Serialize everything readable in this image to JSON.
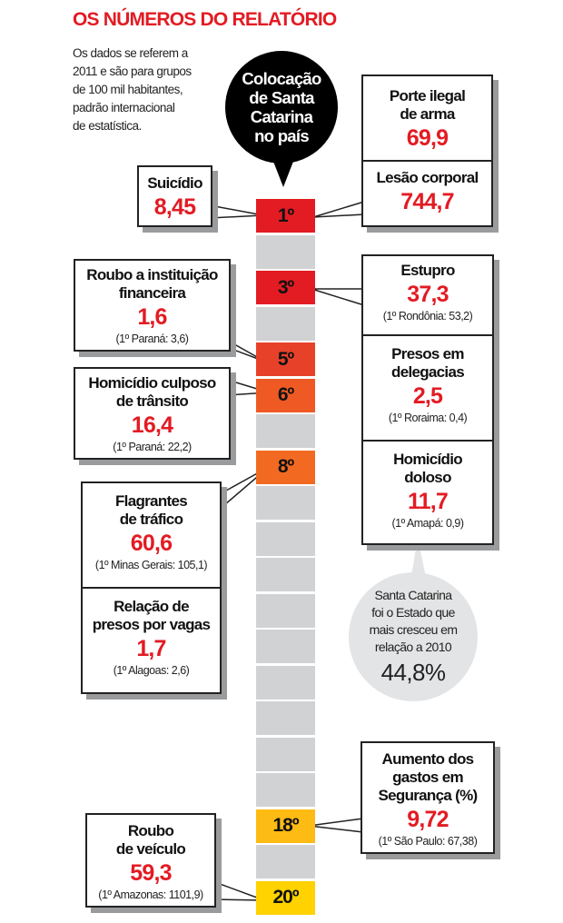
{
  "title": "OS NÚMEROS DO RELATÓRIO",
  "intro": [
    "Os dados se referem a",
    "2011 e são para grupos",
    "de 100 mil habitantes,",
    "padrão internacional",
    "de estatística."
  ],
  "bubble": [
    "Colocação",
    "de Santa",
    "Catarina",
    "no país"
  ],
  "ranks": [
    "1º",
    "3º",
    "5º",
    "6º",
    "8º",
    "18º",
    "20º"
  ],
  "colors": {
    "rank1": "#e31b23",
    "rank3": "#e31b23",
    "rank5": "#e8412a",
    "rank6": "#ef5a24",
    "rank8": "#f26a22",
    "rank18": "#fdbb13",
    "rank20": "#ffd200",
    "empty": "#d1d2d4",
    "value": "#e31b23"
  },
  "callouts": {
    "suicidio": {
      "title": [
        "Suicídio"
      ],
      "value": "8,45"
    },
    "porte": {
      "title": [
        "Porte ilegal",
        "de arma"
      ],
      "value": "69,9"
    },
    "lesao": {
      "title": [
        "Lesão corporal"
      ],
      "value": "744,7"
    },
    "roubo_inst": {
      "title": [
        "Roubo a instituição",
        "financeira"
      ],
      "value": "1,6",
      "note": "(1º Paraná: 3,6)"
    },
    "estupro": {
      "title": [
        "Estupro"
      ],
      "value": "37,3",
      "note": "(1º Rondônia: 53,2)"
    },
    "presos_deleg": {
      "title": [
        "Presos em",
        "delegacias"
      ],
      "value": "2,5",
      "note": "(1º Roraima: 0,4)"
    },
    "homic_culposo": {
      "title": [
        "Homicídio culposo",
        "de trânsito"
      ],
      "value": "16,4",
      "note": "(1º Paraná: 22,2)"
    },
    "homic_doloso": {
      "title": [
        "Homicídio",
        "doloso"
      ],
      "value": "11,7",
      "note": "(1º Amapá: 0,9)"
    },
    "flagrantes": {
      "title": [
        "Flagrantes",
        "de tráfico"
      ],
      "value": "60,6",
      "note": "(1º Minas Gerais: 105,1)"
    },
    "relacao": {
      "title": [
        "Relação de",
        "presos por vagas"
      ],
      "value": "1,7",
      "note": "(1º Alagoas: 2,6)"
    },
    "aumento": {
      "title": [
        "Aumento dos",
        "gastos em",
        "Segurança (%)"
      ],
      "value": "9,72",
      "note": "(1º São Paulo: 67,38)"
    },
    "roubo_veic": {
      "title": [
        "Roubo",
        "de veículo"
      ],
      "value": "59,3",
      "note": "(1º Amazonas: 1101,9)"
    }
  },
  "growth": {
    "text": [
      "Santa Catarina",
      "foi o Estado que",
      "mais cresceu em",
      "relação a 2010"
    ],
    "value": "44,8%"
  }
}
